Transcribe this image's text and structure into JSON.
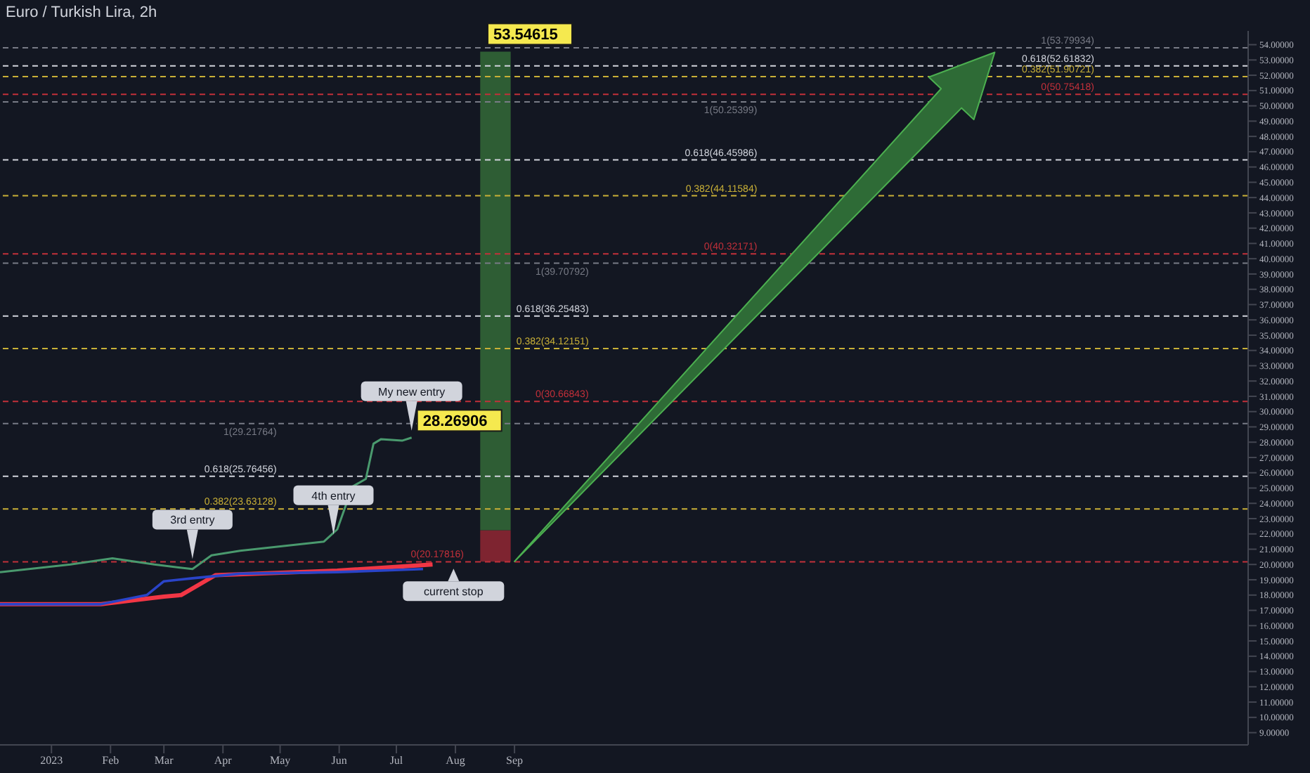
{
  "chart_data": {
    "type": "line",
    "title": "Euro / Turkish Lira, 2h",
    "xlim": [
      "2022-12-05",
      "2024-09-20"
    ],
    "xticks": [
      {
        "value": "2023-01-01",
        "label": "2023"
      },
      {
        "value": "2023-02-01",
        "label": "Feb"
      },
      {
        "value": "2023-03-01",
        "label": "Mar"
      },
      {
        "value": "2023-04-01",
        "label": "Apr"
      },
      {
        "value": "2023-05-01",
        "label": "May"
      },
      {
        "value": "2023-06-01",
        "label": "Jun"
      },
      {
        "value": "2023-07-01",
        "label": "Jul"
      },
      {
        "value": "2023-08-01",
        "label": "Aug"
      },
      {
        "value": "2023-09-01",
        "label": "Sep"
      }
    ],
    "ylim": [
      8.2,
      54.9
    ],
    "yticks": [
      {
        "value": 9,
        "label": "9.00000"
      },
      {
        "value": 10,
        "label": "10.00000"
      },
      {
        "value": 11,
        "label": "11.00000"
      },
      {
        "value": 12,
        "label": "12.00000"
      },
      {
        "value": 13,
        "label": "13.00000"
      },
      {
        "value": 14,
        "label": "14.00000"
      },
      {
        "value": 15,
        "label": "15.00000"
      },
      {
        "value": 16,
        "label": "16.00000"
      },
      {
        "value": 17,
        "label": "17.00000"
      },
      {
        "value": 18,
        "label": "18.00000"
      },
      {
        "value": 19,
        "label": "19.00000"
      },
      {
        "value": 20,
        "label": "20.00000"
      },
      {
        "value": 21,
        "label": "21.00000"
      },
      {
        "value": 22,
        "label": "22.00000"
      },
      {
        "value": 23,
        "label": "23.00000"
      },
      {
        "value": 24,
        "label": "24.00000"
      },
      {
        "value": 25,
        "label": "25.00000"
      },
      {
        "value": 26,
        "label": "26.00000"
      },
      {
        "value": 27,
        "label": "27.00000"
      },
      {
        "value": 28,
        "label": "28.00000"
      },
      {
        "value": 29,
        "label": "29.00000"
      },
      {
        "value": 30,
        "label": "30.00000"
      },
      {
        "value": 31,
        "label": "31.00000"
      },
      {
        "value": 32,
        "label": "32.00000"
      },
      {
        "value": 33,
        "label": "33.00000"
      },
      {
        "value": 34,
        "label": "34.00000"
      },
      {
        "value": 35,
        "label": "35.00000"
      },
      {
        "value": 36,
        "label": "36.00000"
      },
      {
        "value": 37,
        "label": "37.00000"
      },
      {
        "value": 38,
        "label": "38.00000"
      },
      {
        "value": 39,
        "label": "39.00000"
      },
      {
        "value": 40,
        "label": "40.00000"
      },
      {
        "value": 41,
        "label": "41.00000"
      },
      {
        "value": 42,
        "label": "42.00000"
      },
      {
        "value": 43,
        "label": "43.00000"
      },
      {
        "value": 44,
        "label": "44.00000"
      },
      {
        "value": 45,
        "label": "45.00000"
      },
      {
        "value": 46,
        "label": "46.00000"
      },
      {
        "value": 47,
        "label": "47.00000"
      },
      {
        "value": 48,
        "label": "48.00000"
      },
      {
        "value": 49,
        "label": "49.00000"
      },
      {
        "value": 50,
        "label": "50.00000"
      },
      {
        "value": 51,
        "label": "51.00000"
      },
      {
        "value": 52,
        "label": "52.00000"
      },
      {
        "value": 53,
        "label": "53.00000"
      },
      {
        "value": 54,
        "label": "54.00000"
      }
    ],
    "series": [
      {
        "color": "#f23645",
        "x": [
          "2022-12-05",
          "2023-01-27",
          "2023-03-01",
          "2023-03-10",
          "2023-03-28",
          "2023-05-31",
          "2023-07-20"
        ],
        "values": [
          17.4,
          17.4,
          17.9,
          18.0,
          19.3,
          19.6,
          20.0
        ]
      },
      {
        "color": "#2a44c8",
        "x": [
          "2022-12-05",
          "2023-01-27",
          "2023-02-20",
          "2023-03-01",
          "2023-03-16",
          "2023-04-10",
          "2023-05-31",
          "2023-07-15"
        ],
        "values": [
          17.4,
          17.4,
          18.0,
          18.9,
          19.1,
          19.4,
          19.5,
          19.7
        ]
      },
      {
        "color": "#4a9a6e",
        "x": [
          "2022-12-05",
          "2023-01-11",
          "2023-02-02",
          "2023-02-24",
          "2023-03-16",
          "2023-03-26",
          "2023-04-10",
          "2023-05-02",
          "2023-05-24",
          "2023-05-31",
          "2023-06-08",
          "2023-06-15",
          "2023-06-19",
          "2023-06-23",
          "2023-07-04",
          "2023-07-09"
        ],
        "values": [
          19.5,
          20.0,
          20.4,
          20.0,
          19.7,
          20.6,
          20.9,
          21.2,
          21.5,
          22.3,
          25.1,
          25.6,
          27.9,
          28.2,
          28.1,
          28.3
        ]
      },
      {
        "type": "bar",
        "color": "#7e2430",
        "x": [
          "2023-08-22"
        ],
        "base": [
          20.18
        ],
        "values": [
          2.06
        ]
      },
      {
        "type": "bar",
        "color": "#2e5d34",
        "x": [
          "2023-08-22"
        ],
        "base": [
          22.24
        ],
        "values": [
          31.3
        ]
      }
    ],
    "ref_lines": [
      {
        "axis": "y",
        "value": 29.21764,
        "label": "1(29.21764)",
        "color": "#787b86",
        "line_style": "dashed"
      },
      {
        "axis": "y",
        "value": 25.76456,
        "label": "0.618(25.76456)",
        "color": "#d1d4dc",
        "line_style": "dashed"
      },
      {
        "axis": "y",
        "value": 23.63128,
        "label": "0.382(23.63128)",
        "color": "#c9b037",
        "line_style": "dashed"
      },
      {
        "axis": "y",
        "value": 20.17816,
        "label": "0(20.17816)",
        "color": "#c2303a",
        "line_style": "dashed"
      },
      {
        "axis": "y",
        "value": 39.70792,
        "label": "1(39.70792)",
        "color": "#787b86",
        "line_style": "dashed"
      },
      {
        "axis": "y",
        "value": 36.25483,
        "label": "0.618(36.25483)",
        "color": "#d1d4dc",
        "line_style": "dashed"
      },
      {
        "axis": "y",
        "value": 34.12151,
        "label": "0.382(34.12151)",
        "color": "#c9b037",
        "line_style": "dashed"
      },
      {
        "axis": "y",
        "value": 30.66843,
        "label": "0(30.66843)",
        "color": "#c2303a",
        "line_style": "dashed"
      },
      {
        "axis": "y",
        "value": 50.25399,
        "label": "1(50.25399)",
        "color": "#787b86",
        "line_style": "dashed"
      },
      {
        "axis": "y",
        "value": 46.45986,
        "label": "0.618(46.45986)",
        "color": "#d1d4dc",
        "line_style": "dashed"
      },
      {
        "axis": "y",
        "value": 44.11584,
        "label": "0.382(44.11584)",
        "color": "#c9b037",
        "line_style": "dashed"
      },
      {
        "axis": "y",
        "value": 40.32171,
        "label": "0(40.32171)",
        "color": "#c2303a",
        "line_style": "dashed"
      },
      {
        "axis": "y",
        "value": 53.79934,
        "label": "1(53.79934)",
        "color": "#787b86",
        "line_style": "dashed"
      },
      {
        "axis": "y",
        "value": 52.61832,
        "label": "0.618(52.61832)",
        "color": "#d1d4dc",
        "line_style": "dashed"
      },
      {
        "axis": "y",
        "value": 51.90721,
        "label": "0.382(51.90721)",
        "color": "#c9b037",
        "line_style": "dashed"
      },
      {
        "axis": "y",
        "value": 50.75418,
        "label": "0(50.75418)",
        "color": "#c2303a",
        "line_style": "dashed"
      }
    ],
    "annotations": [
      {
        "text": "3rd entry",
        "x": "2023-03-16",
        "y": 19.9
      },
      {
        "text": "4th entry",
        "x": "2023-05-29",
        "y": 21.5
      },
      {
        "text": "My new entry",
        "x": "2023-07-09",
        "y": 28.3
      },
      {
        "text": "current stop",
        "x": "2023-07-31",
        "y": 20.18
      },
      {
        "text": "28.26906",
        "x": "2023-07-09",
        "y": 28.26906
      },
      {
        "text": "53.54615",
        "x": "2023-08-15",
        "y": 53.54615
      }
    ],
    "grid": false,
    "legend": false,
    "line_style": "solid"
  }
}
